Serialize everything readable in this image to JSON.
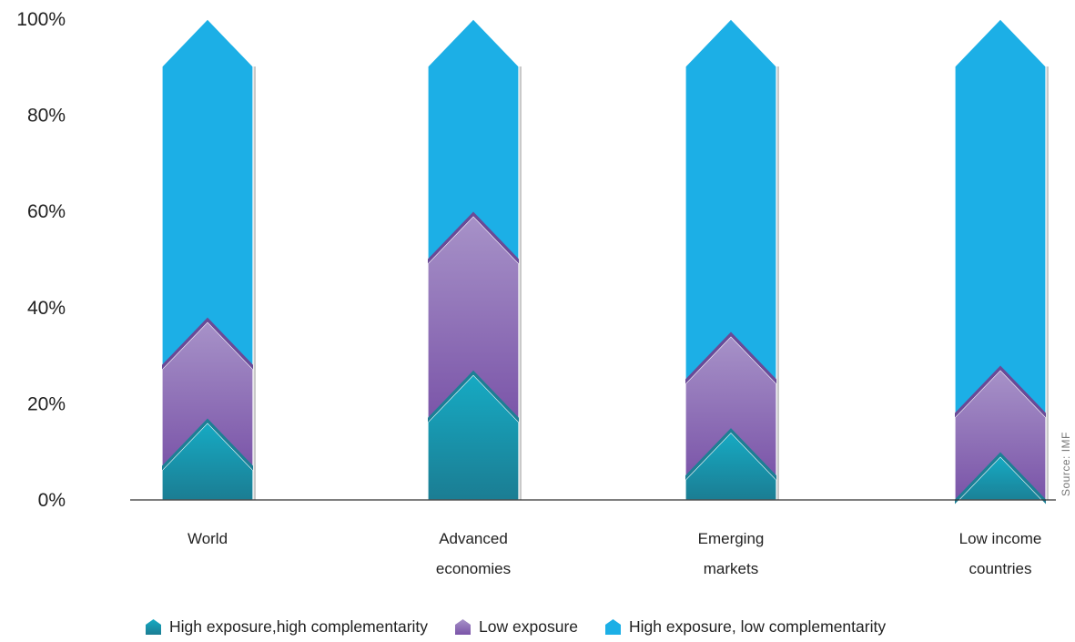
{
  "chart_data": {
    "type": "bar",
    "stacked": true,
    "categories": [
      "World",
      "Advanced economies",
      "Emerging markets",
      "Low income countries"
    ],
    "category_lines": [
      [
        "World"
      ],
      [
        "Advanced",
        "economies"
      ],
      [
        "Emerging",
        "markets"
      ],
      [
        "Low income",
        "countries"
      ]
    ],
    "series": [
      {
        "name": "High exposure,high complementarity",
        "values": [
          16,
          26,
          14,
          9
        ],
        "color": "#179fb4"
      },
      {
        "name": "Low exposure",
        "values": [
          21,
          33,
          20,
          18
        ],
        "color": "#9b87c4"
      },
      {
        "name": "High exposure, low complementarity",
        "values": [
          63,
          41,
          66,
          73
        ],
        "color": "#1cafe6"
      }
    ],
    "ylim": [
      0,
      100
    ],
    "yticks": [
      "0%",
      "20%",
      "40%",
      "60%",
      "80%",
      "100%"
    ],
    "ytick_values": [
      0,
      20,
      40,
      60,
      80,
      100
    ],
    "grid": false,
    "legend_position": "bottom",
    "annotation": "Source: IMF"
  }
}
